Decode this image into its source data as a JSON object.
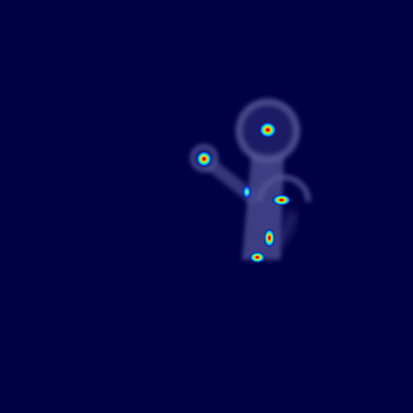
{
  "scene": {
    "background_color": "#020045",
    "figure_glow_color": "#8c8fd8",
    "heatmap_colormap": "jet",
    "body_parts": [
      {
        "name": "head"
      },
      {
        "name": "upper-arm"
      },
      {
        "name": "hand"
      },
      {
        "name": "torso"
      },
      {
        "name": "back-arm-arc"
      }
    ],
    "keypoints": [
      {
        "name": "head-keypoint"
      },
      {
        "name": "hand-keypoint"
      },
      {
        "name": "elbow-keypoint"
      },
      {
        "name": "shoulder-keypoint"
      },
      {
        "name": "hip-keypoint"
      },
      {
        "name": "knee-keypoint"
      }
    ]
  }
}
